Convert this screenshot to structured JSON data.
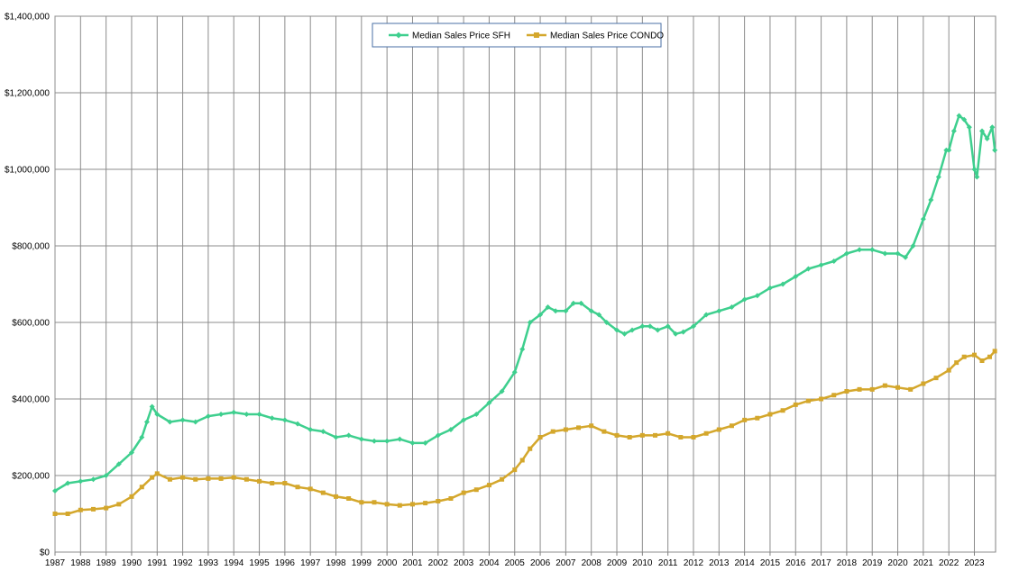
{
  "chart_data": {
    "type": "line",
    "ylim": [
      0,
      1400000
    ],
    "xlim": [
      1987.0,
      2023.83
    ],
    "y_ticks": [
      0,
      200000,
      400000,
      600000,
      800000,
      1000000,
      1200000,
      1400000
    ],
    "y_tick_labels": [
      "$0",
      "$200,000",
      "$400,000",
      "$600,000",
      "$800,000",
      "$1,000,000",
      "$1,200,000",
      "$1,400,000"
    ],
    "x_tick_labels": [
      "1987",
      "1988",
      "1989",
      "1990",
      "1991",
      "1992",
      "1993",
      "1994",
      "1995",
      "1996",
      "1997",
      "1998",
      "1999",
      "2000",
      "2001",
      "2002",
      "2003",
      "2004",
      "2005",
      "2006",
      "2007",
      "2008",
      "2009",
      "2010",
      "2011",
      "2012",
      "2013",
      "2014",
      "2015",
      "2016",
      "2017",
      "2018",
      "2019",
      "2020",
      "2021",
      "2022",
      "2023"
    ],
    "grid": true,
    "legend": "top-center",
    "series": [
      {
        "name": "Median Sales Price SFH",
        "color": "#3ecf8e",
        "marker": "diamond",
        "x": [
          1987.0,
          1987.5,
          1988.0,
          1988.5,
          1989.0,
          1989.5,
          1990.0,
          1990.4,
          1990.6,
          1990.8,
          1991.0,
          1991.5,
          1992.0,
          1992.5,
          1993.0,
          1993.5,
          1994.0,
          1994.5,
          1995.0,
          1995.5,
          1996.0,
          1996.5,
          1997.0,
          1997.5,
          1998.0,
          1998.5,
          1999.0,
          1999.5,
          2000.0,
          2000.5,
          2001.0,
          2001.5,
          2002.0,
          2002.5,
          2003.0,
          2003.5,
          2004.0,
          2004.5,
          2005.0,
          2005.3,
          2005.6,
          2006.0,
          2006.3,
          2006.6,
          2007.0,
          2007.3,
          2007.6,
          2008.0,
          2008.3,
          2008.6,
          2009.0,
          2009.3,
          2009.6,
          2010.0,
          2010.3,
          2010.6,
          2011.0,
          2011.3,
          2011.6,
          2012.0,
          2012.5,
          2013.0,
          2013.5,
          2014.0,
          2014.5,
          2015.0,
          2015.5,
          2016.0,
          2016.5,
          2017.0,
          2017.5,
          2018.0,
          2018.5,
          2019.0,
          2019.5,
          2020.0,
          2020.3,
          2020.6,
          2021.0,
          2021.3,
          2021.6,
          2021.9,
          2022.0,
          2022.2,
          2022.4,
          2022.6,
          2022.8,
          2023.0,
          2023.1,
          2023.3,
          2023.5,
          2023.7,
          2023.8
        ],
        "values": [
          160000,
          180000,
          185000,
          190000,
          200000,
          230000,
          260000,
          300000,
          340000,
          380000,
          360000,
          340000,
          345000,
          340000,
          355000,
          360000,
          365000,
          360000,
          360000,
          350000,
          345000,
          335000,
          320000,
          315000,
          300000,
          305000,
          295000,
          290000,
          290000,
          295000,
          285000,
          285000,
          305000,
          320000,
          345000,
          360000,
          390000,
          420000,
          470000,
          530000,
          600000,
          620000,
          640000,
          630000,
          630000,
          650000,
          650000,
          630000,
          620000,
          600000,
          580000,
          570000,
          580000,
          590000,
          590000,
          580000,
          590000,
          570000,
          575000,
          590000,
          620000,
          630000,
          640000,
          660000,
          670000,
          690000,
          700000,
          720000,
          740000,
          750000,
          760000,
          780000,
          790000,
          790000,
          780000,
          780000,
          770000,
          800000,
          870000,
          920000,
          980000,
          1050000,
          1050000,
          1100000,
          1140000,
          1130000,
          1110000,
          1000000,
          980000,
          1100000,
          1080000,
          1110000,
          1050000
        ]
      },
      {
        "name": "Median Sales Price CONDO",
        "color": "#d4a72c",
        "marker": "square",
        "x": [
          1987.0,
          1987.5,
          1988.0,
          1988.5,
          1989.0,
          1989.5,
          1990.0,
          1990.4,
          1990.8,
          1991.0,
          1991.5,
          1992.0,
          1992.5,
          1993.0,
          1993.5,
          1994.0,
          1994.5,
          1995.0,
          1995.5,
          1996.0,
          1996.5,
          1997.0,
          1997.5,
          1998.0,
          1998.5,
          1999.0,
          1999.5,
          2000.0,
          2000.5,
          2001.0,
          2001.5,
          2002.0,
          2002.5,
          2003.0,
          2003.5,
          2004.0,
          2004.5,
          2005.0,
          2005.3,
          2005.6,
          2006.0,
          2006.5,
          2007.0,
          2007.5,
          2008.0,
          2008.5,
          2009.0,
          2009.5,
          2010.0,
          2010.5,
          2011.0,
          2011.5,
          2012.0,
          2012.5,
          2013.0,
          2013.5,
          2014.0,
          2014.5,
          2015.0,
          2015.5,
          2016.0,
          2016.5,
          2017.0,
          2017.5,
          2018.0,
          2018.5,
          2019.0,
          2019.5,
          2020.0,
          2020.5,
          2021.0,
          2021.5,
          2022.0,
          2022.3,
          2022.6,
          2023.0,
          2023.3,
          2023.6,
          2023.8
        ],
        "values": [
          100000,
          100000,
          110000,
          112000,
          115000,
          125000,
          145000,
          170000,
          195000,
          205000,
          190000,
          195000,
          190000,
          192000,
          192000,
          195000,
          190000,
          185000,
          180000,
          180000,
          170000,
          165000,
          155000,
          145000,
          140000,
          130000,
          130000,
          125000,
          122000,
          125000,
          128000,
          133000,
          140000,
          155000,
          163000,
          175000,
          190000,
          215000,
          240000,
          270000,
          300000,
          315000,
          320000,
          325000,
          330000,
          315000,
          305000,
          300000,
          305000,
          305000,
          310000,
          300000,
          300000,
          310000,
          320000,
          330000,
          345000,
          350000,
          360000,
          370000,
          385000,
          395000,
          400000,
          410000,
          420000,
          425000,
          425000,
          435000,
          430000,
          425000,
          440000,
          455000,
          475000,
          495000,
          510000,
          515000,
          500000,
          510000,
          525000
        ]
      }
    ]
  }
}
